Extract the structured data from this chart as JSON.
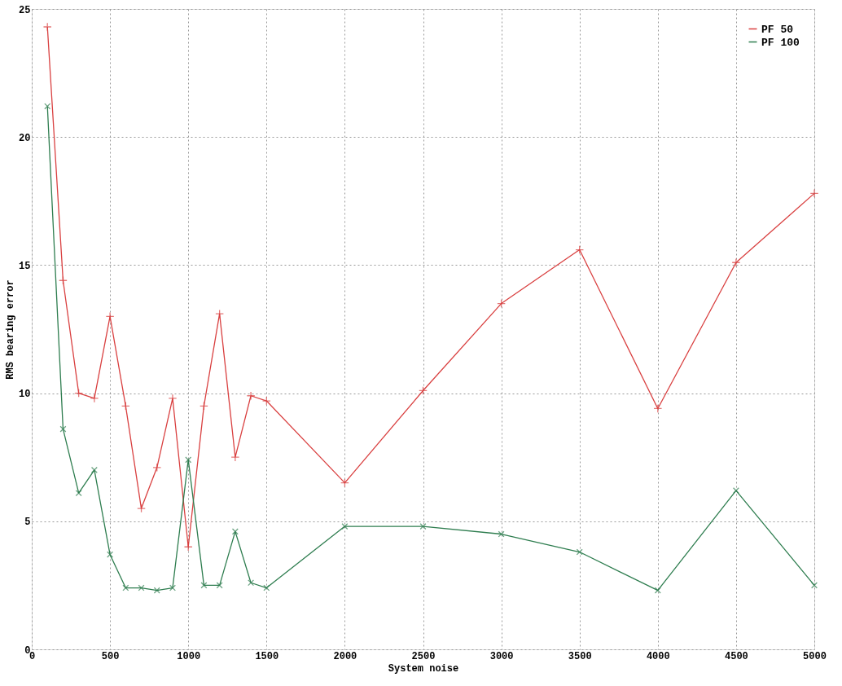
{
  "chart_data": {
    "type": "line",
    "xlabel": "System noise",
    "ylabel": "RMS bearing error",
    "x": [
      100,
      200,
      300,
      400,
      500,
      600,
      700,
      800,
      900,
      1000,
      1100,
      1200,
      1300,
      1400,
      1500,
      2000,
      2500,
      3000,
      3500,
      4000,
      4500,
      5000
    ],
    "series": [
      {
        "name": "PF 50",
        "color": "#d94040",
        "marker": "cross",
        "values": [
          24.3,
          14.4,
          10.0,
          9.8,
          13.0,
          9.5,
          5.5,
          7.1,
          9.8,
          4.0,
          9.5,
          13.1,
          7.5,
          9.9,
          9.7,
          6.5,
          10.1,
          13.5,
          15.6,
          9.4,
          15.1,
          17.8
        ]
      },
      {
        "name": "PF 100",
        "color": "#2e7d4f",
        "marker": "cross",
        "values": [
          21.2,
          8.6,
          6.1,
          7.0,
          3.7,
          2.4,
          2.4,
          2.3,
          2.4,
          7.4,
          2.5,
          2.5,
          4.6,
          2.6,
          2.4,
          4.8,
          4.8,
          4.5,
          3.8,
          2.3,
          6.2,
          2.5
        ]
      }
    ],
    "xlim": [
      0,
      5000
    ],
    "xticks": [
      0,
      500,
      1000,
      1500,
      2000,
      2500,
      3000,
      3500,
      4000,
      4500,
      5000
    ],
    "ylim": [
      0,
      25
    ],
    "yticks": [
      0,
      5,
      10,
      15,
      20,
      25
    ],
    "grid": true,
    "legend": "top right",
    "line_style": "solid"
  }
}
